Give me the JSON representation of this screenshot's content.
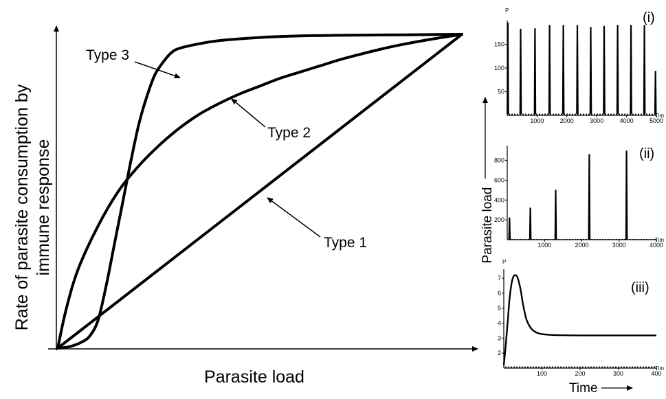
{
  "chart_data": [
    {
      "type": "line",
      "xlabel": "Parasite load",
      "ylabel_lines": [
        "Rate of parasite consumption by",
        "immune response"
      ],
      "xlim": [
        0,
        1
      ],
      "ylim": [
        0,
        1
      ],
      "grid": false,
      "series": [
        {
          "name": "Type 1",
          "x": [
            0,
            1
          ],
          "y": [
            0,
            1
          ]
        },
        {
          "name": "Type 2",
          "x": [
            0,
            0.02,
            0.05,
            0.1,
            0.15,
            0.2,
            0.25,
            0.3,
            0.35,
            0.4,
            0.45,
            0.5,
            0.55,
            0.6,
            0.65,
            0.7,
            0.75,
            0.8,
            0.85,
            0.9,
            0.95,
            1.0
          ],
          "y": [
            0,
            0.12,
            0.25,
            0.39,
            0.5,
            0.58,
            0.645,
            0.7,
            0.745,
            0.78,
            0.81,
            0.835,
            0.86,
            0.88,
            0.9,
            0.92,
            0.937,
            0.953,
            0.967,
            0.979,
            0.99,
            1.0
          ]
        },
        {
          "name": "Type 3",
          "x": [
            0,
            0.03,
            0.06,
            0.08,
            0.1,
            0.12,
            0.14,
            0.16,
            0.18,
            0.2,
            0.22,
            0.24,
            0.26,
            0.28,
            0.3,
            0.35,
            0.4,
            0.5,
            0.6,
            0.7,
            0.8,
            0.9,
            1.0
          ],
          "y": [
            0,
            0.005,
            0.02,
            0.04,
            0.09,
            0.2,
            0.33,
            0.46,
            0.59,
            0.71,
            0.8,
            0.87,
            0.91,
            0.94,
            0.955,
            0.97,
            0.98,
            0.99,
            0.995,
            0.997,
            0.998,
            0.999,
            1.0
          ]
        }
      ],
      "annotations": [
        "Type 3",
        "Type 2",
        "Type 1"
      ]
    },
    {
      "type": "line",
      "panel_label": "(i)",
      "ylabel": "P",
      "xlabel": "Tim",
      "xlim": [
        0,
        5000
      ],
      "ylim": [
        0,
        200
      ],
      "xticks": [
        1000,
        2000,
        3000,
        4000,
        5000
      ],
      "yticks": [
        50,
        100,
        150
      ],
      "ytick_labels": [
        "50",
        "100",
        "150"
      ],
      "peaks": [
        {
          "t": 20,
          "p": 195
        },
        {
          "t": 450,
          "p": 182
        },
        {
          "t": 930,
          "p": 183
        },
        {
          "t": 1420,
          "p": 190
        },
        {
          "t": 1880,
          "p": 190
        },
        {
          "t": 2350,
          "p": 190
        },
        {
          "t": 2800,
          "p": 186
        },
        {
          "t": 3250,
          "p": 188
        },
        {
          "t": 3700,
          "p": 190
        },
        {
          "t": 4150,
          "p": 190
        },
        {
          "t": 4600,
          "p": 190
        },
        {
          "t": 4970,
          "p": 93
        }
      ],
      "baseline": 3
    },
    {
      "type": "line",
      "panel_label": "(ii)",
      "xlabel": "Tim",
      "xlim": [
        0,
        4000
      ],
      "ylim": [
        0,
        950
      ],
      "xticks": [
        1000,
        2000,
        3000,
        4000
      ],
      "yticks": [
        200,
        400,
        600,
        800
      ],
      "ytick_labels": [
        "200",
        "400",
        "600",
        "800"
      ],
      "peaks": [
        {
          "t": 60,
          "p": 220
        },
        {
          "t": 620,
          "p": 320
        },
        {
          "t": 1300,
          "p": 500
        },
        {
          "t": 2200,
          "p": 860
        },
        {
          "t": 3200,
          "p": 895
        }
      ],
      "baseline": 5
    },
    {
      "type": "line",
      "panel_label": "(iii)",
      "ylabel": "P",
      "xlabel": "Tim",
      "xlim": [
        0,
        400
      ],
      "ylim": [
        1,
        7.6
      ],
      "xticks": [
        100,
        200,
        300,
        400
      ],
      "yticks": [
        2,
        3,
        4,
        5,
        6,
        7
      ],
      "ytick_labels": [
        "2",
        "3",
        "4",
        "5",
        "6",
        "7"
      ],
      "x": [
        0,
        5,
        10,
        15,
        20,
        25,
        30,
        35,
        40,
        45,
        50,
        55,
        60,
        70,
        80,
        90,
        100,
        120,
        140,
        160,
        200,
        250,
        300,
        350,
        400
      ],
      "y": [
        1.2,
        2.5,
        4.0,
        5.6,
        6.6,
        7.1,
        7.2,
        7.1,
        6.7,
        6.1,
        5.3,
        4.7,
        4.2,
        3.7,
        3.45,
        3.33,
        3.27,
        3.22,
        3.2,
        3.19,
        3.18,
        3.18,
        3.18,
        3.18,
        3.18
      ]
    },
    {
      "type": "annotation",
      "ylabel": "Parasite load",
      "xlabel": "Time"
    }
  ]
}
